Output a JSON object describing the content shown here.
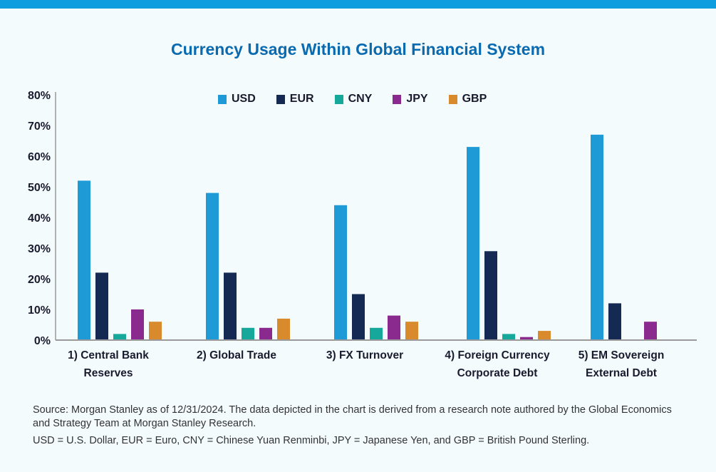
{
  "title": "Currency Usage Within Global Financial System",
  "legend": [
    {
      "name": "USD",
      "color": "#1e9ad6"
    },
    {
      "name": "EUR",
      "color": "#142a52"
    },
    {
      "name": "CNY",
      "color": "#16a89a"
    },
    {
      "name": "JPY",
      "color": "#8b2a8e"
    },
    {
      "name": "GBP",
      "color": "#d98a2c"
    }
  ],
  "chart_data": {
    "type": "bar",
    "title": "Currency Usage Within Global Financial System",
    "categories": [
      [
        "1) Central Bank",
        "Reserves"
      ],
      [
        "2) Global Trade"
      ],
      [
        "3) FX Turnover"
      ],
      [
        "4) Foreign Currency",
        "Corporate Debt"
      ],
      [
        "5) EM Sovereign",
        "External Debt"
      ]
    ],
    "series": [
      {
        "name": "USD",
        "values": [
          52,
          48,
          44,
          63,
          67
        ]
      },
      {
        "name": "EUR",
        "values": [
          22,
          22,
          15,
          29,
          12
        ]
      },
      {
        "name": "CNY",
        "values": [
          2,
          4,
          4,
          2,
          0
        ]
      },
      {
        "name": "JPY",
        "values": [
          10,
          4,
          8,
          1,
          6
        ]
      },
      {
        "name": "GBP",
        "values": [
          6,
          7,
          6,
          3,
          0
        ]
      }
    ],
    "y_ticks": [
      "0%",
      "10%",
      "20%",
      "30%",
      "40%",
      "50%",
      "60%",
      "70%",
      "80%"
    ],
    "ylim": [
      0,
      80
    ],
    "grid": false,
    "legend_position": "top"
  },
  "footnotes": {
    "source": "Source: Morgan Stanley as of 12/31/2024. The data depicted in the chart is derived from a research note authored by the Global Economics and Strategy Team at Morgan Stanley Research.",
    "abbreviations": "USD = U.S. Dollar, EUR = Euro, CNY = Chinese Yuan Renminbi, JPY = Japanese Yen, and GBP = British Pound Sterling."
  }
}
